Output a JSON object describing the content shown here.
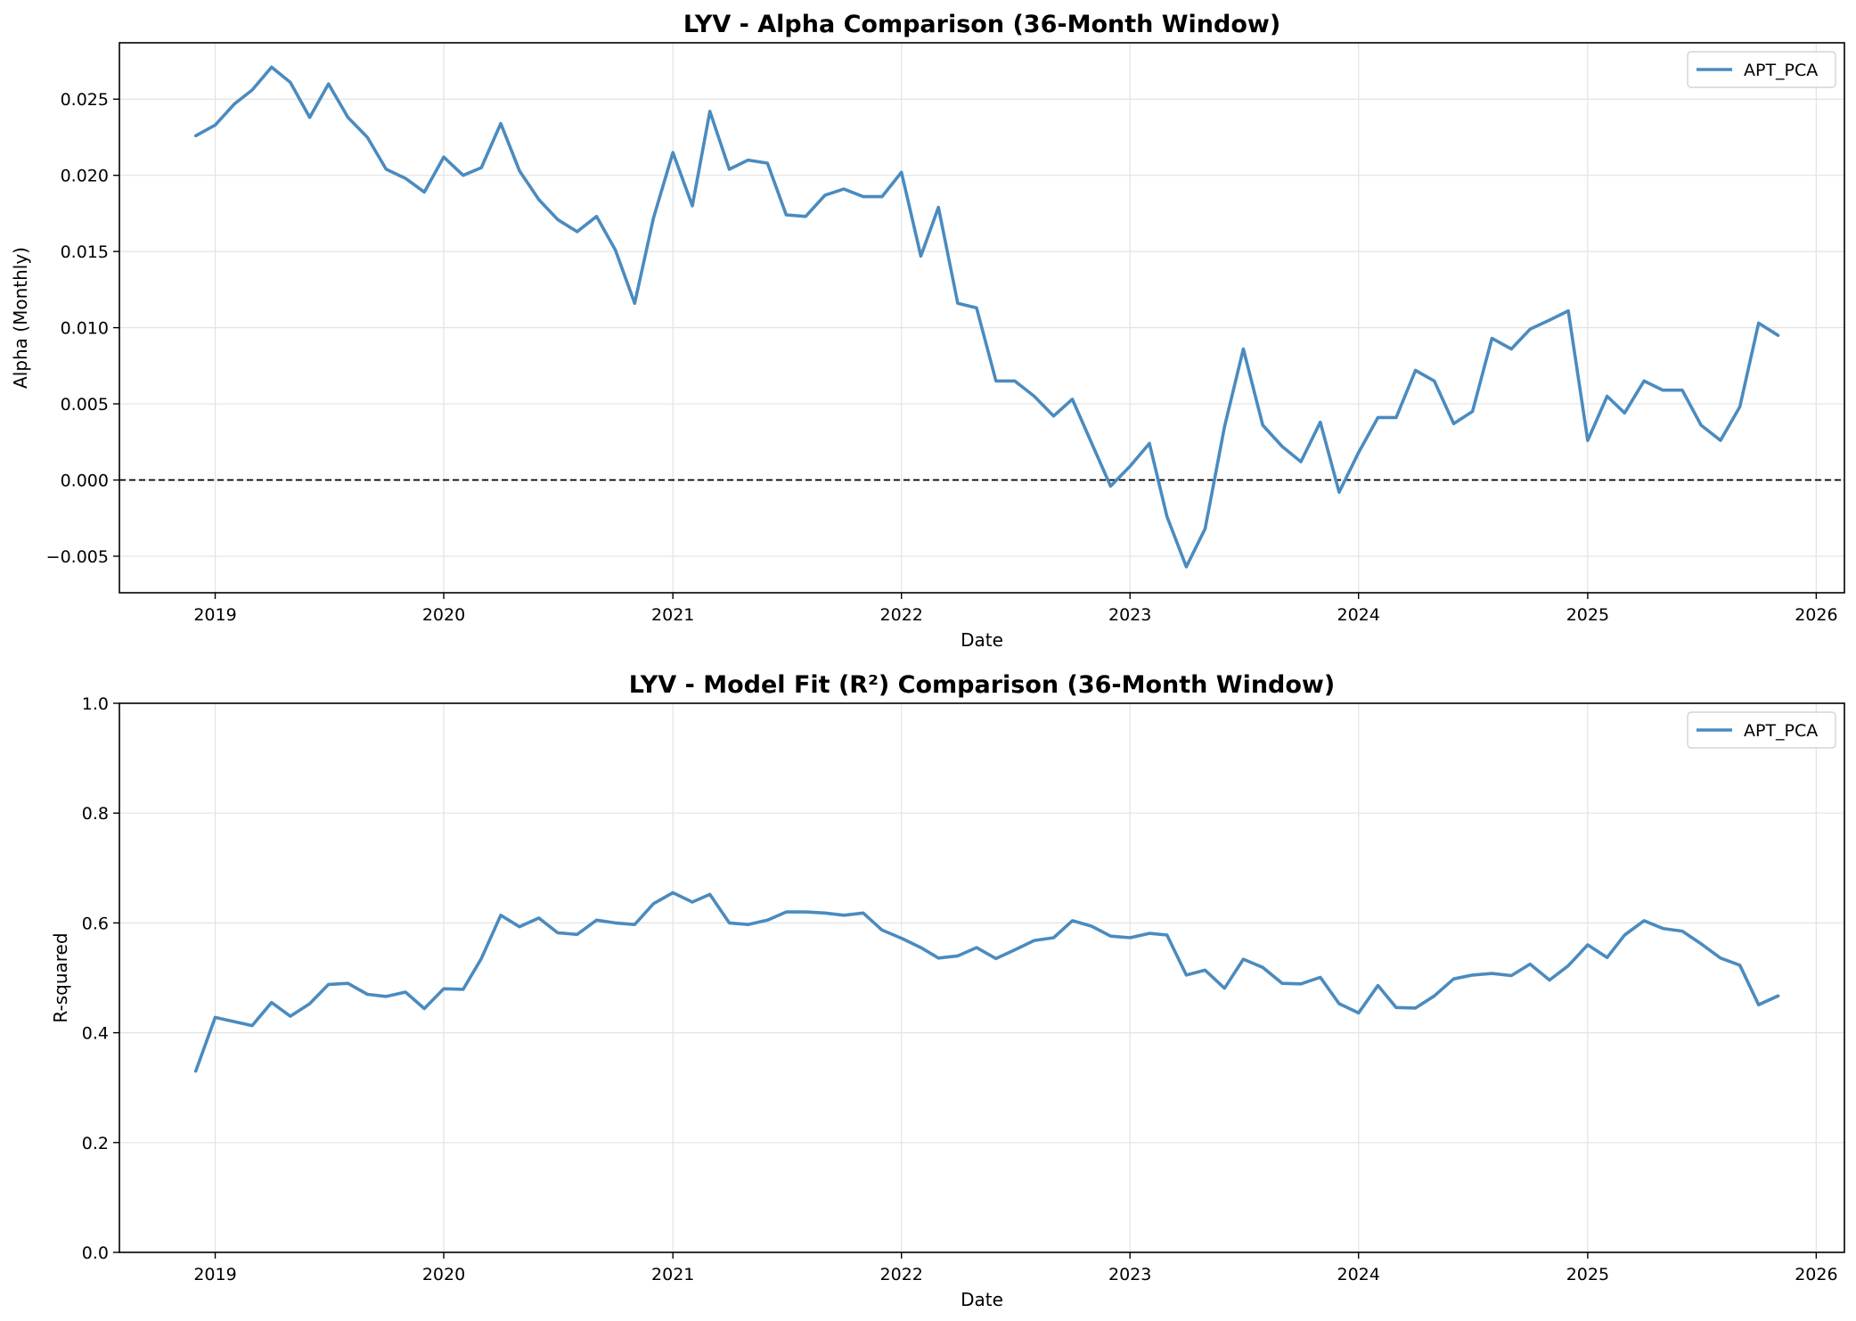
{
  "chart_data": [
    {
      "type": "line",
      "title": "LYV - Alpha Comparison (36-Month Window)",
      "xlabel": "Date",
      "ylabel": "Alpha (Monthly)",
      "xlim": [
        "2018-08-01",
        "2026-02-15"
      ],
      "ylim": [
        -0.0074,
        0.0287
      ],
      "x_ticks": [
        "2019",
        "2020",
        "2021",
        "2022",
        "2023",
        "2024",
        "2025",
        "2026"
      ],
      "y_ticks": [
        "−0.005",
        "0.000",
        "0.005",
        "0.010",
        "0.015",
        "0.020",
        "0.025"
      ],
      "y_tick_values": [
        -0.005,
        0.0,
        0.005,
        0.01,
        0.015,
        0.02,
        0.025
      ],
      "grid": true,
      "legend_position": "top-right",
      "reference_line": 0,
      "colors": {
        "series": "#4a8bbf",
        "grid": "#e3e3e3",
        "reference": "#000000"
      },
      "series": [
        {
          "name": "APT_PCA",
          "x": [
            "2018-12",
            "2019-01",
            "2019-02",
            "2019-03",
            "2019-04",
            "2019-05",
            "2019-06",
            "2019-07",
            "2019-08",
            "2019-09",
            "2019-10",
            "2019-11",
            "2019-12",
            "2020-01",
            "2020-02",
            "2020-03",
            "2020-04",
            "2020-05",
            "2020-06",
            "2020-07",
            "2020-08",
            "2020-09",
            "2020-10",
            "2020-11",
            "2020-12",
            "2021-01",
            "2021-02",
            "2021-03",
            "2021-04",
            "2021-05",
            "2021-06",
            "2021-07",
            "2021-08",
            "2021-09",
            "2021-10",
            "2021-11",
            "2021-12",
            "2022-01",
            "2022-02",
            "2022-03",
            "2022-04",
            "2022-05",
            "2022-06",
            "2022-07",
            "2022-08",
            "2022-09",
            "2022-10",
            "2022-11",
            "2022-12",
            "2023-01",
            "2023-02",
            "2023-03",
            "2023-04",
            "2023-05",
            "2023-06",
            "2023-07",
            "2023-08",
            "2023-09",
            "2023-10",
            "2023-11",
            "2023-12",
            "2024-01",
            "2024-02",
            "2024-03",
            "2024-04",
            "2024-05",
            "2024-06",
            "2024-07",
            "2024-08",
            "2024-09",
            "2024-10",
            "2024-11",
            "2024-12",
            "2025-01",
            "2025-02",
            "2025-03",
            "2025-04",
            "2025-05",
            "2025-06",
            "2025-07",
            "2025-08",
            "2025-09",
            "2025-10",
            "2025-11"
          ],
          "values": [
            0.0226,
            0.0233,
            0.0247,
            0.0256,
            0.0271,
            0.0261,
            0.0238,
            0.026,
            0.0238,
            0.0225,
            0.0204,
            0.0198,
            0.0189,
            0.0212,
            0.02,
            0.0205,
            0.0234,
            0.0203,
            0.0184,
            0.0171,
            0.0163,
            0.0173,
            0.0151,
            0.0116,
            0.0172,
            0.0215,
            0.018,
            0.0242,
            0.0204,
            0.021,
            0.0208,
            0.0174,
            0.0173,
            0.0187,
            0.0191,
            0.0186,
            0.0186,
            0.0202,
            0.0147,
            0.0179,
            0.0116,
            0.0113,
            0.0065,
            0.0065,
            0.0055,
            0.0042,
            0.0053,
            0.0024,
            -0.0004,
            0.0009,
            0.0024,
            -0.0024,
            -0.0057,
            -0.0032,
            0.0035,
            0.0086,
            0.0036,
            0.0022,
            0.0012,
            0.0038,
            -0.0008,
            0.0018,
            0.0041,
            0.0041,
            0.0072,
            0.0065,
            0.0037,
            0.0045,
            0.0093,
            0.0086,
            0.0099,
            0.0105,
            0.0111,
            0.0026,
            0.0055,
            0.0044,
            0.0065,
            0.0059,
            0.0059,
            0.0036,
            0.0026,
            0.0048,
            0.0103,
            0.0095
          ]
        }
      ]
    },
    {
      "type": "line",
      "title": "LYV - Model Fit (R²) Comparison (36-Month Window)",
      "xlabel": "Date",
      "ylabel": "R-squared",
      "xlim": [
        "2018-08-01",
        "2026-02-15"
      ],
      "ylim": [
        0,
        1
      ],
      "x_ticks": [
        "2019",
        "2020",
        "2021",
        "2022",
        "2023",
        "2024",
        "2025",
        "2026"
      ],
      "y_ticks": [
        "0.0",
        "0.2",
        "0.4",
        "0.6",
        "0.8",
        "1.0"
      ],
      "y_tick_values": [
        0,
        0.2,
        0.4,
        0.6,
        0.8,
        1.0
      ],
      "grid": true,
      "legend_position": "top-right",
      "colors": {
        "series": "#4a8bbf",
        "grid": "#e3e3e3"
      },
      "series": [
        {
          "name": "APT_PCA",
          "x": [
            "2018-12",
            "2019-01",
            "2019-02",
            "2019-03",
            "2019-04",
            "2019-05",
            "2019-06",
            "2019-07",
            "2019-08",
            "2019-09",
            "2019-10",
            "2019-11",
            "2019-12",
            "2020-01",
            "2020-02",
            "2020-03",
            "2020-04",
            "2020-05",
            "2020-06",
            "2020-07",
            "2020-08",
            "2020-09",
            "2020-10",
            "2020-11",
            "2020-12",
            "2021-01",
            "2021-02",
            "2021-03",
            "2021-04",
            "2021-05",
            "2021-06",
            "2021-07",
            "2021-08",
            "2021-09",
            "2021-10",
            "2021-11",
            "2021-12",
            "2022-01",
            "2022-02",
            "2022-03",
            "2022-04",
            "2022-05",
            "2022-06",
            "2022-07",
            "2022-08",
            "2022-09",
            "2022-10",
            "2022-11",
            "2022-12",
            "2023-01",
            "2023-02",
            "2023-03",
            "2023-04",
            "2023-05",
            "2023-06",
            "2023-07",
            "2023-08",
            "2023-09",
            "2023-10",
            "2023-11",
            "2023-12",
            "2024-01",
            "2024-02",
            "2024-03",
            "2024-04",
            "2024-05",
            "2024-06",
            "2024-07",
            "2024-08",
            "2024-09",
            "2024-10",
            "2024-11",
            "2024-12",
            "2025-01",
            "2025-02",
            "2025-03",
            "2025-04",
            "2025-05",
            "2025-06",
            "2025-07",
            "2025-08",
            "2025-09",
            "2025-10",
            "2025-11"
          ],
          "values": [
            0.33,
            0.428,
            0.42,
            0.413,
            0.455,
            0.43,
            0.453,
            0.488,
            0.49,
            0.47,
            0.466,
            0.474,
            0.444,
            0.48,
            0.479,
            0.535,
            0.614,
            0.593,
            0.609,
            0.582,
            0.579,
            0.605,
            0.6,
            0.597,
            0.635,
            0.655,
            0.638,
            0.652,
            0.6,
            0.597,
            0.605,
            0.62,
            0.62,
            0.618,
            0.614,
            0.618,
            0.587,
            0.572,
            0.555,
            0.536,
            0.54,
            0.555,
            0.535,
            0.551,
            0.568,
            0.573,
            0.604,
            0.594,
            0.576,
            0.573,
            0.581,
            0.578,
            0.505,
            0.514,
            0.481,
            0.534,
            0.519,
            0.49,
            0.489,
            0.501,
            0.453,
            0.436,
            0.486,
            0.446,
            0.445,
            0.467,
            0.498,
            0.505,
            0.508,
            0.504,
            0.525,
            0.496,
            0.522,
            0.56,
            0.537,
            0.578,
            0.604,
            0.59,
            0.585,
            0.562,
            0.536,
            0.523,
            0.451,
            0.467
          ]
        }
      ]
    }
  ]
}
